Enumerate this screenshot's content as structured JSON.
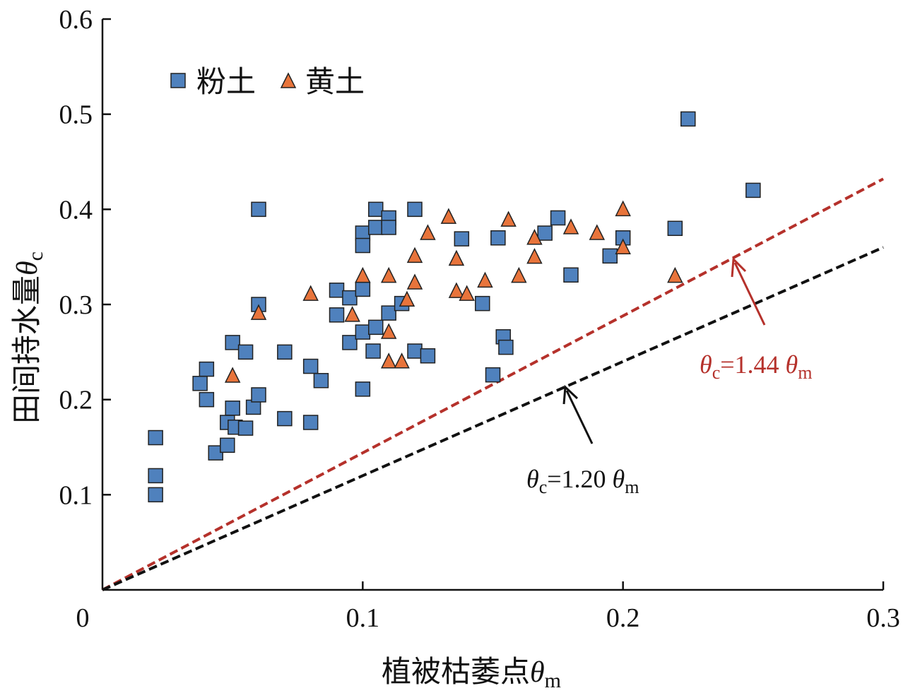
{
  "chart_data": {
    "type": "scatter",
    "title": "",
    "xlabel": "植被枯萎点θm",
    "xlabel_main": "植被枯萎点",
    "xlabel_sym": "θ",
    "xlabel_sub": "m",
    "ylabel_main": "田间持水量",
    "ylabel_sym": "θ",
    "ylabel_sub": "c",
    "xlim": [
      0,
      0.3
    ],
    "ylim": [
      0,
      0.6
    ],
    "xticks": [
      "0",
      "0.1",
      "0.2",
      "0.3"
    ],
    "yticks": [
      "0.1",
      "0.2",
      "0.3",
      "0.4",
      "0.5",
      "0.6"
    ],
    "legend": {
      "placement": "top-left",
      "entries": [
        "粉土",
        "黄土"
      ]
    },
    "colors": {
      "silt": "#4f81bd",
      "loess": "#e8743b",
      "line144": "#b5312b",
      "line120": "#111111"
    },
    "series": [
      {
        "name": "粉土",
        "marker": "square",
        "points": [
          [
            0.0204,
            0.16
          ],
          [
            0.0204,
            0.12
          ],
          [
            0.0204,
            0.1
          ],
          [
            0.06,
            0.4
          ],
          [
            0.06,
            0.3
          ],
          [
            0.0375,
            0.217
          ],
          [
            0.04,
            0.232
          ],
          [
            0.04,
            0.2
          ],
          [
            0.0435,
            0.144
          ],
          [
            0.048,
            0.152
          ],
          [
            0.05,
            0.26
          ],
          [
            0.055,
            0.25
          ],
          [
            0.048,
            0.176
          ],
          [
            0.05,
            0.191
          ],
          [
            0.051,
            0.171
          ],
          [
            0.055,
            0.17
          ],
          [
            0.058,
            0.192
          ],
          [
            0.06,
            0.205
          ],
          [
            0.07,
            0.25
          ],
          [
            0.07,
            0.18
          ],
          [
            0.08,
            0.235
          ],
          [
            0.08,
            0.176
          ],
          [
            0.084,
            0.22
          ],
          [
            0.09,
            0.315
          ],
          [
            0.09,
            0.289
          ],
          [
            0.095,
            0.307
          ],
          [
            0.095,
            0.26
          ],
          [
            0.1,
            0.316
          ],
          [
            0.1,
            0.375
          ],
          [
            0.1,
            0.362
          ],
          [
            0.1,
            0.271
          ],
          [
            0.1,
            0.211
          ],
          [
            0.105,
            0.4
          ],
          [
            0.105,
            0.381
          ],
          [
            0.105,
            0.276
          ],
          [
            0.104,
            0.251
          ],
          [
            0.11,
            0.391
          ],
          [
            0.11,
            0.381
          ],
          [
            0.11,
            0.291
          ],
          [
            0.115,
            0.301
          ],
          [
            0.12,
            0.4
          ],
          [
            0.12,
            0.251
          ],
          [
            0.125,
            0.246
          ],
          [
            0.138,
            0.369
          ],
          [
            0.146,
            0.301
          ],
          [
            0.15,
            0.226
          ],
          [
            0.152,
            0.37
          ],
          [
            0.154,
            0.266
          ],
          [
            0.155,
            0.255
          ],
          [
            0.17,
            0.375
          ],
          [
            0.175,
            0.391
          ],
          [
            0.18,
            0.331
          ],
          [
            0.195,
            0.351
          ],
          [
            0.2,
            0.37
          ],
          [
            0.22,
            0.38
          ],
          [
            0.225,
            0.495
          ],
          [
            0.25,
            0.42
          ]
        ]
      },
      {
        "name": "黄土",
        "marker": "triangle",
        "points": [
          [
            0.06,
            0.291
          ],
          [
            0.05,
            0.225
          ],
          [
            0.08,
            0.311
          ],
          [
            0.096,
            0.289
          ],
          [
            0.1,
            0.33
          ],
          [
            0.11,
            0.33
          ],
          [
            0.11,
            0.271
          ],
          [
            0.11,
            0.24
          ],
          [
            0.115,
            0.24
          ],
          [
            0.117,
            0.305
          ],
          [
            0.12,
            0.351
          ],
          [
            0.12,
            0.323
          ],
          [
            0.125,
            0.375
          ],
          [
            0.133,
            0.392
          ],
          [
            0.136,
            0.348
          ],
          [
            0.136,
            0.314
          ],
          [
            0.14,
            0.311
          ],
          [
            0.147,
            0.325
          ],
          [
            0.156,
            0.389
          ],
          [
            0.16,
            0.33
          ],
          [
            0.166,
            0.35
          ],
          [
            0.166,
            0.37
          ],
          [
            0.18,
            0.381
          ],
          [
            0.19,
            0.375
          ],
          [
            0.2,
            0.4
          ],
          [
            0.2,
            0.36
          ],
          [
            0.22,
            0.33
          ]
        ]
      }
    ],
    "lines": [
      {
        "name": "θc=1.44 θm",
        "slope": 1.44,
        "label_sym": "θ",
        "label_sub": "c",
        "label_mid": "=1.44 ",
        "label_sym2": "θ",
        "label_sub2": "m"
      },
      {
        "name": "θc=1.20 θm",
        "slope": 1.2,
        "label_sym": "θ",
        "label_sub": "c",
        "label_mid": "=1.20 ",
        "label_sym2": "θ",
        "label_sub2": "m"
      }
    ]
  }
}
